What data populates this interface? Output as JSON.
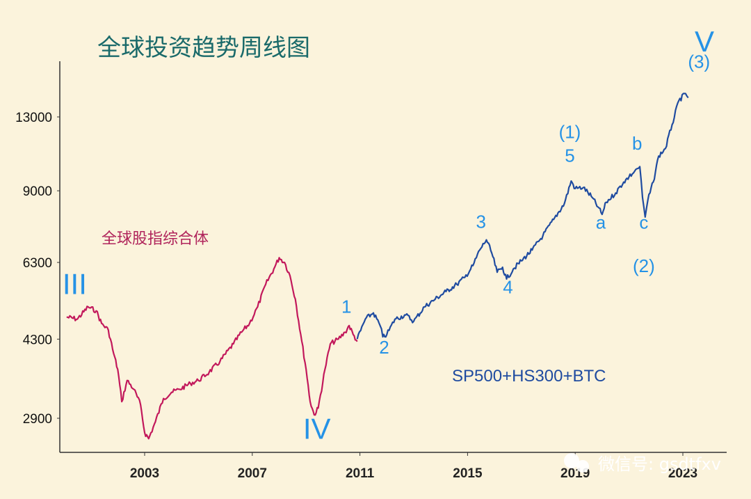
{
  "chart_data": {
    "type": "line",
    "title": "全球投资趋势周线图",
    "xlabel": "",
    "ylabel": "",
    "y_ticks": [
      "13000",
      "9000",
      "6300",
      "4300",
      "2900"
    ],
    "x_ticks": [
      "2003",
      "2007",
      "2011",
      "2015",
      "2019",
      "2023"
    ],
    "colors": {
      "series1": "#c2185b",
      "series2": "#1f4ba0",
      "wave": "#2592e6"
    },
    "series": [
      {
        "name": "全球股指综合体",
        "points": [
          [
            2000.1,
            4800
          ],
          [
            2000.5,
            4750
          ],
          [
            2000.9,
            5050
          ],
          [
            2001.2,
            4950
          ],
          [
            2001.4,
            4650
          ],
          [
            2001.65,
            4500
          ],
          [
            2001.85,
            4000
          ],
          [
            2002.0,
            3700
          ],
          [
            2002.15,
            3150
          ],
          [
            2002.35,
            3500
          ],
          [
            2002.6,
            3350
          ],
          [
            2002.85,
            3100
          ],
          [
            2003.0,
            2700
          ],
          [
            2003.15,
            2620
          ],
          [
            2003.4,
            2850
          ],
          [
            2003.7,
            3200
          ],
          [
            2004.0,
            3300
          ],
          [
            2004.3,
            3350
          ],
          [
            2004.7,
            3450
          ],
          [
            2005.0,
            3500
          ],
          [
            2005.4,
            3650
          ],
          [
            2005.8,
            3850
          ],
          [
            2006.3,
            4200
          ],
          [
            2006.6,
            4450
          ],
          [
            2006.9,
            4650
          ],
          [
            2007.2,
            5050
          ],
          [
            2007.5,
            5650
          ],
          [
            2007.8,
            6100
          ],
          [
            2008.0,
            6450
          ],
          [
            2008.2,
            6300
          ],
          [
            2008.4,
            5900
          ],
          [
            2008.6,
            5250
          ],
          [
            2008.8,
            4400
          ],
          [
            2009.0,
            3700
          ],
          [
            2009.15,
            3150
          ],
          [
            2009.3,
            2950
          ],
          [
            2009.45,
            3050
          ],
          [
            2009.7,
            3700
          ],
          [
            2009.9,
            4200
          ],
          [
            2010.2,
            4300
          ],
          [
            2010.45,
            4450
          ],
          [
            2010.6,
            4600
          ],
          [
            2010.75,
            4400
          ],
          [
            2010.9,
            4250
          ]
        ]
      },
      {
        "name": "SP500+HS300+BTC",
        "points": [
          [
            2010.9,
            4300
          ],
          [
            2011.2,
            4750
          ],
          [
            2011.5,
            4900
          ],
          [
            2011.75,
            4600
          ],
          [
            2011.85,
            4350
          ],
          [
            2012.0,
            4400
          ],
          [
            2012.3,
            4750
          ],
          [
            2012.7,
            4850
          ],
          [
            2013.0,
            4700
          ],
          [
            2013.4,
            5050
          ],
          [
            2013.8,
            5250
          ],
          [
            2014.2,
            5450
          ],
          [
            2014.6,
            5650
          ],
          [
            2014.9,
            5850
          ],
          [
            2015.2,
            6200
          ],
          [
            2015.45,
            6700
          ],
          [
            2015.7,
            7050
          ],
          [
            2015.9,
            6600
          ],
          [
            2016.1,
            6000
          ],
          [
            2016.3,
            6150
          ],
          [
            2016.45,
            5800
          ],
          [
            2016.7,
            6100
          ],
          [
            2017.0,
            6350
          ],
          [
            2017.4,
            6700
          ],
          [
            2017.8,
            7200
          ],
          [
            2018.2,
            7800
          ],
          [
            2018.6,
            8450
          ],
          [
            2018.85,
            9450
          ],
          [
            2019.0,
            9100
          ],
          [
            2019.3,
            9150
          ],
          [
            2019.6,
            8750
          ],
          [
            2019.85,
            8300
          ],
          [
            2020.0,
            8000
          ],
          [
            2020.15,
            8500
          ],
          [
            2020.5,
            8900
          ],
          [
            2020.8,
            9400
          ],
          [
            2021.0,
            9650
          ],
          [
            2021.2,
            9900
          ],
          [
            2021.3,
            10050
          ],
          [
            2021.4,
            10150
          ],
          [
            2021.5,
            8700
          ],
          [
            2021.6,
            7900
          ],
          [
            2021.7,
            8600
          ],
          [
            2021.9,
            9400
          ],
          [
            2022.1,
            10700
          ],
          [
            2022.35,
            11100
          ],
          [
            2022.6,
            12500
          ],
          [
            2022.85,
            14100
          ],
          [
            2023.1,
            14600
          ],
          [
            2023.2,
            14300
          ]
        ]
      }
    ],
    "series_labels": [
      "全球股指综合体",
      "SP500+HS300+BTC"
    ],
    "wave_labels": [
      {
        "text": "III",
        "x": 2000.4,
        "y": 5380,
        "size": "large"
      },
      {
        "text": "IV",
        "x": 2009.4,
        "y": 2620,
        "size": "large"
      },
      {
        "text": "V",
        "x": 2023.8,
        "y": 18000,
        "size": "large"
      },
      {
        "text": "1",
        "x": 2010.5,
        "y": 4900,
        "size": "small"
      },
      {
        "text": "2",
        "x": 2011.9,
        "y": 4000,
        "size": "small"
      },
      {
        "text": "3",
        "x": 2015.5,
        "y": 7480,
        "size": "small"
      },
      {
        "text": "4",
        "x": 2016.5,
        "y": 5400,
        "size": "small"
      },
      {
        "text": "5",
        "x": 2018.8,
        "y": 10400,
        "size": "small"
      },
      {
        "text": "(1)",
        "x": 2018.8,
        "y": 11700,
        "size": "small"
      },
      {
        "text": "a",
        "x": 2019.95,
        "y": 7450,
        "size": "small"
      },
      {
        "text": "b",
        "x": 2021.3,
        "y": 11050,
        "size": "small"
      },
      {
        "text": "c",
        "x": 2021.55,
        "y": 7450,
        "size": "small"
      },
      {
        "text": "(2)",
        "x": 2021.55,
        "y": 6000,
        "size": "small"
      },
      {
        "text": "(3)",
        "x": 2023.6,
        "y": 16600,
        "size": "small"
      }
    ]
  },
  "watermark": {
    "text": "微信号: gsdtfxv",
    "icon": "wechat-icon"
  }
}
